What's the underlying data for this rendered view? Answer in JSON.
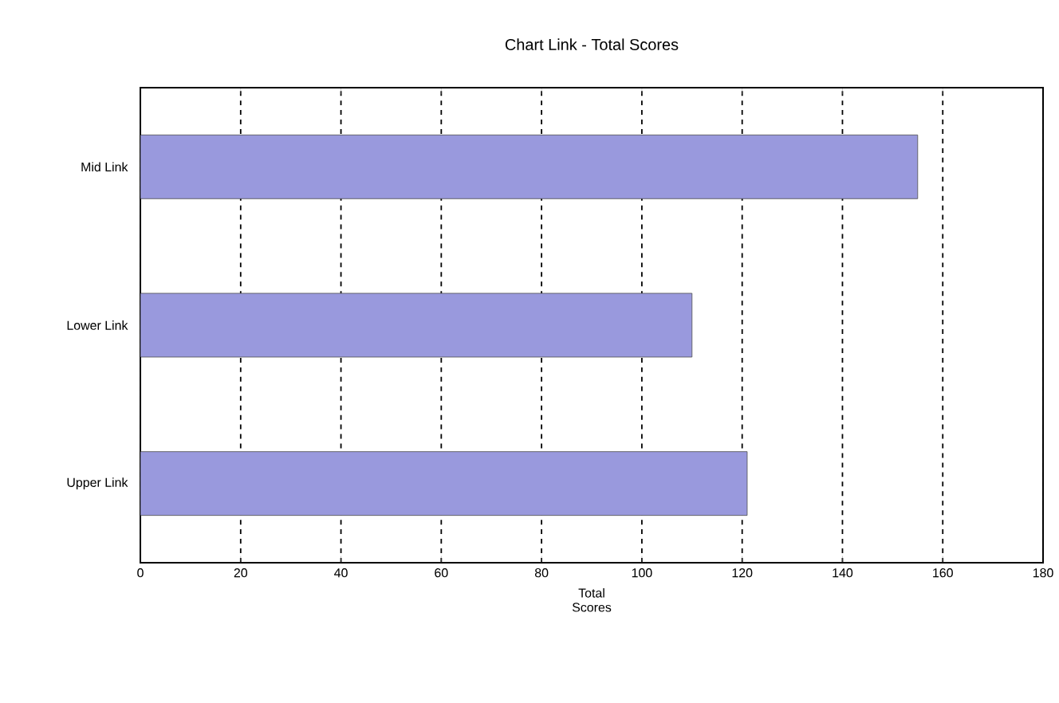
{
  "chart_data": {
    "type": "bar",
    "orientation": "horizontal",
    "title": "Chart Link - Total Scores",
    "xlabel": "Total Scores",
    "categories": [
      "Mid Link",
      "Lower Link",
      "Upper Link"
    ],
    "values": [
      155,
      110,
      121
    ],
    "color": "#9999dd",
    "xlim": [
      0,
      180
    ],
    "xticks": [
      0,
      20,
      40,
      60,
      80,
      100,
      120,
      140,
      160,
      180
    ],
    "grid": "x"
  }
}
